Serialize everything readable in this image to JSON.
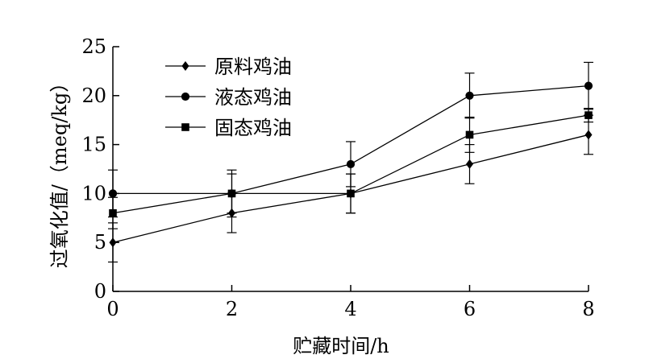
{
  "chart_data": {
    "type": "line",
    "x": [
      0,
      2,
      4,
      6,
      8
    ],
    "xticks": [
      0,
      2,
      4,
      6,
      8
    ],
    "yticks": [
      0,
      5,
      10,
      15,
      20,
      25
    ],
    "xlim": [
      0,
      8
    ],
    "ylim": [
      0,
      25
    ],
    "xlabel": "贮藏时间/h",
    "ylabel": "过氧化值/（meq/kg）",
    "title": "",
    "grid": false,
    "legend_position": "top-left",
    "series": [
      {
        "name": "原料鸡油",
        "marker": "diamond",
        "color": "#000000",
        "values": [
          5,
          8,
          10,
          13,
          16
        ],
        "errors": [
          2,
          2,
          2,
          2,
          2
        ]
      },
      {
        "name": "液态鸡油",
        "marker": "circle",
        "color": "#000000",
        "values": [
          10,
          10,
          13,
          20,
          21
        ],
        "errors": [
          2.4,
          2.4,
          2.3,
          2.3,
          2.4
        ]
      },
      {
        "name": "固态鸡油",
        "marker": "square",
        "color": "#000000",
        "values": [
          8,
          10,
          10,
          16,
          18
        ],
        "errors": [
          1.6,
          2.0,
          2.0,
          1.8,
          0.7
        ]
      }
    ]
  }
}
